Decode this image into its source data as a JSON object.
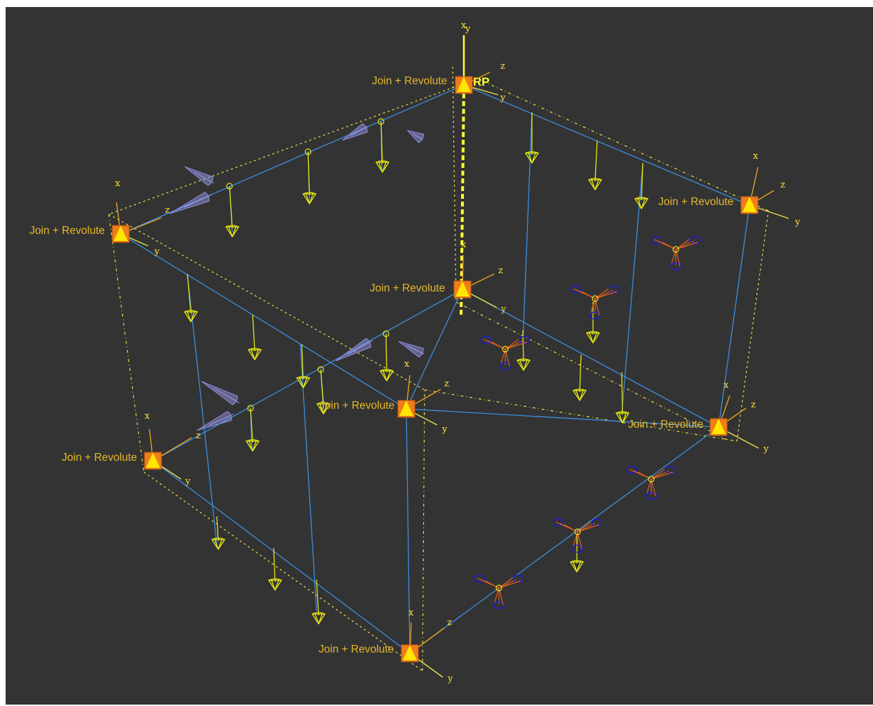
{
  "viewport": {
    "background": "#333333"
  },
  "connector_label": "Join + Revolute",
  "rp_label": "RP",
  "axis_labels": {
    "x": "x",
    "y": "y",
    "z": "z"
  },
  "colors": {
    "beam": "#3b8fe0",
    "load": "#e6e614",
    "connector": "#f07c1c",
    "connector_triangle": "#ffe600",
    "label": "#e6b82a",
    "moment_arrow": "#9c9cf0",
    "boundary_condition": "#1c1ce0"
  }
}
